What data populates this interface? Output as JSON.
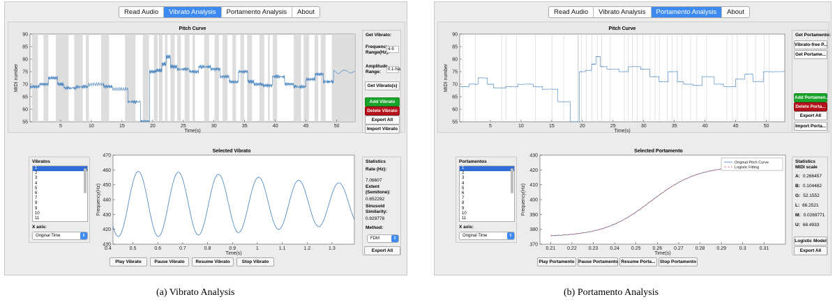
{
  "panel_a": {
    "tabs": [
      "Read Audio",
      "Vibrato Analysis",
      "Portamento Analysis",
      "About"
    ],
    "active_tab": 1,
    "pitch_title": "Pitch Curve",
    "pitch_ylabel": "MIDI number",
    "pitch_xlabel": "Time(s)",
    "pitch_yticks": [
      "90",
      "85",
      "80",
      "75",
      "70",
      "65",
      "60",
      "55"
    ],
    "pitch_xticks": [
      "5",
      "10",
      "15",
      "20",
      "25",
      "30",
      "35",
      "40",
      "45",
      "50"
    ],
    "get_vibrato_title": "Get Vibrato:",
    "freq_label": "Frequency Range(Hz):",
    "freq_value": "4-9",
    "amp_label": "Amplitude Range:",
    "amp_value": "0.1-Na",
    "get_vibratos_btn": "Get Vibrato(s)",
    "add_btn": "Add Vibrato",
    "delete_btn": "Delete Vibrato",
    "export_all_btn": "Export All",
    "import_btn": "Import Vibrato",
    "list_title": "Vibratos",
    "list_items": [
      "1",
      "2",
      "3",
      "4",
      "5",
      "6",
      "7",
      "8",
      "9",
      "10",
      "11"
    ],
    "xaxis_label": "X axis:",
    "xaxis_value": "Original Time",
    "selected_title": "Selected Vibrato",
    "sel_ylabel": "Frequency(Hz)",
    "sel_xlabel": "Time(s)",
    "sel_yticks": [
      "470",
      "460",
      "450",
      "440",
      "430",
      "420",
      "410"
    ],
    "sel_xticks": [
      "0.4",
      "0.5",
      "0.6",
      "0.7",
      "0.8",
      "0.9",
      "1",
      "1.1",
      "1.2",
      "1.3"
    ],
    "play_btn": "Play Vibrato",
    "pause_btn": "Pause Vibrato",
    "resume_btn": "Resume Vibrato",
    "stop_btn": "Stop Vibrato",
    "stats_title": "Statistics",
    "rate_label": "Rate (Hz):",
    "rate_value": "7.06607",
    "extent_label": "Extent (Semitone):",
    "extent_value": "0.652292",
    "sim_label": "Sinusoid Similarity:",
    "sim_value": "0.929778",
    "method_label": "Method:",
    "method_value": "FDM",
    "stats_export_btn": "Export All",
    "caption": "(a)  Vibrato Analysis"
  },
  "panel_b": {
    "tabs": [
      "Read Audio",
      "Vibrato Analysis",
      "Portamento Analysis",
      "About"
    ],
    "active_tab": 2,
    "pitch_title": "Pitch Curve",
    "pitch_ylabel": "MIDI number",
    "pitch_xlabel": "Time(s)",
    "pitch_yticks": [
      "90",
      "85",
      "80",
      "75",
      "70",
      "65",
      "60",
      "55"
    ],
    "pitch_xticks": [
      "5",
      "10",
      "15",
      "20",
      "25",
      "30",
      "35",
      "40",
      "45",
      "50"
    ],
    "get_portamento_title": "Get Portamento:",
    "vibrato_free_btn": "Vibrato-free P...",
    "get_portamento_btn": "Get Portame...",
    "add_btn": "Add Portamen...",
    "delete_btn": "Delete Porta...",
    "export_all_btn": "Export All",
    "import_btn": "Import Porta...",
    "list_title": "Portamentos",
    "list_items": [
      "1",
      "2",
      "3",
      "4",
      "5",
      "6",
      "7",
      "8",
      "9",
      "10",
      "11"
    ],
    "xaxis_label": "X axis:",
    "xaxis_value": "Original Time",
    "selected_title": "Selected Portamento",
    "sel_ylabel": "Frequency(Hz)",
    "sel_xlabel": "Time(s)",
    "sel_yticks": [
      "430",
      "420",
      "410",
      "400",
      "390",
      "380",
      "370"
    ],
    "sel_xticks": [
      "0.21",
      "0.22",
      "0.23",
      "0.24",
      "0.25",
      "0.26",
      "0.27",
      "0.28",
      "0.29",
      "0.3",
      "0.31"
    ],
    "legend_1": "Original Pitch Curve",
    "legend_2": "Logistic Fitting",
    "play_btn": "Play Portamento",
    "pause_btn": "Pause Portamento",
    "resume_btn": "Resume Porta...",
    "stop_btn": "Stop Portamento",
    "stats_title": "Statistics",
    "scale_label": "MIDI scale",
    "params": [
      {
        "k": "A:",
        "v": "0.266457"
      },
      {
        "k": "B:",
        "v": "0.104482"
      },
      {
        "k": "G:",
        "v": "52.1552"
      },
      {
        "k": "L:",
        "v": "66.2521"
      },
      {
        "k": "M:",
        "v": "0.0269771"
      },
      {
        "k": "U:",
        "v": "68.4933"
      }
    ],
    "logistic_btn": "Logistic Model",
    "stats_export_btn": "Export All",
    "caption": "(b)  Portamento Analysis"
  },
  "colors": {
    "accent": "#3d8bf2",
    "line": "#3f7fbf",
    "green": "#1aa32a",
    "red": "#b5121b",
    "fit": "#d9534f"
  }
}
